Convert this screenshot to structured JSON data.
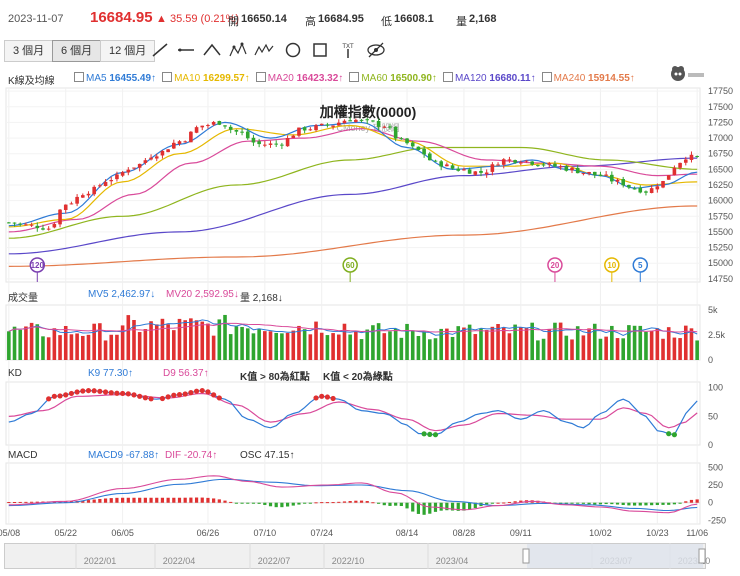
{
  "header": {
    "date": "2023-11-07",
    "price": "16684.95",
    "change": "35.59 (0.21%)",
    "open_label": "開",
    "open": "16650.14",
    "high_label": "高",
    "high": "16684.95",
    "low_label": "低",
    "low": "16608.1",
    "vol_label": "量",
    "vol": "2,168"
  },
  "tabs": [
    {
      "label": "3 個月"
    },
    {
      "label": "6 個月",
      "selected": true
    },
    {
      "label": "12 個月"
    }
  ],
  "tools": [
    "line-tool-icon",
    "horizontal-line-icon",
    "angle-icon",
    "pattern-icon",
    "wave-icon",
    "circle-icon",
    "rectangle-icon",
    "text-tool-icon",
    "hide-icon"
  ],
  "tool_text": {
    "text_tool": "TXT"
  },
  "main_legend": {
    "title": "K線及均線",
    "items": [
      {
        "name": "MA5",
        "value": "16455.49↑",
        "color": "#2f7bd6"
      },
      {
        "name": "MA10",
        "value": "16299.57↑",
        "color": "#e5b800"
      },
      {
        "name": "MA20",
        "value": "16423.32↑",
        "color": "#d94a9a"
      },
      {
        "name": "MA60",
        "value": "16500.90↑",
        "color": "#8fb51e"
      },
      {
        "name": "MA120",
        "value": "16680.11↑",
        "color": "#5a48c9"
      },
      {
        "name": "MA240",
        "value": "15914.55↑",
        "color": "#e37a4a"
      }
    ]
  },
  "chart_title": "加權指數(0000)",
  "watermark": "CMoney 玩股網",
  "vol_legend": {
    "title": "成交量",
    "mv5": "MV5 2,462.97↓",
    "mv20": "MV20 2,592.95↓",
    "vol": "量 2,168↓"
  },
  "kd_legend": {
    "title": "KD",
    "k": "K9 77.30↑",
    "d": "D9 56.37↑",
    "n1": "K值 > 80為紅點",
    "n2": "K值 < 20為綠點"
  },
  "macd_legend": {
    "title": "MACD",
    "macd": "MACD9 -67.88↑",
    "dif": "DIF -20.74↑",
    "osc": "OSC 47.15↑"
  },
  "markers": [
    {
      "label": "120",
      "color": "#7a3fb0",
      "index": 5
    },
    {
      "label": "60",
      "color": "#7fae1e",
      "index": 60
    },
    {
      "label": "20",
      "color": "#d94a9a",
      "index": 96
    },
    {
      "label": "10",
      "color": "#e5b800",
      "index": 106
    },
    {
      "label": "5",
      "color": "#2f7bd6",
      "index": 111
    }
  ],
  "x_ticks": [
    "05/08",
    "05/22",
    "06/05",
    "06/26",
    "07/10",
    "07/24",
    "08/14",
    "08/28",
    "09/11",
    "10/02",
    "10/23",
    "11/06"
  ],
  "nav_ticks": [
    "2022/01",
    "2022/04",
    "2022/07",
    "2022/10",
    "2023/04",
    "2023/07",
    "2023/10"
  ],
  "chart_data": {
    "type": "candlestick",
    "title": "加權指數(0000)",
    "price_axis": {
      "ticks": [
        17750,
        17500,
        17250,
        17000,
        16750,
        16500,
        16250,
        16000,
        15750,
        15500,
        15250,
        15000,
        14750
      ],
      "ylim": [
        14700,
        17800
      ]
    },
    "volume_axis": {
      "ticks": [
        "5k",
        "2.5k",
        "0"
      ],
      "ylim": [
        0,
        5500
      ]
    },
    "kd_axis": {
      "ticks": [
        100,
        50,
        0
      ],
      "ylim": [
        0,
        110
      ]
    },
    "macd_axis": {
      "ticks": [
        500,
        250,
        0,
        -250
      ],
      "ylim": [
        -300,
        560
      ]
    },
    "close_path_anchors": [
      [
        0,
        15650
      ],
      [
        4,
        15600
      ],
      [
        7,
        15560
      ],
      [
        10,
        15950
      ],
      [
        14,
        16150
      ],
      [
        18,
        16350
      ],
      [
        22,
        16550
      ],
      [
        26,
        16750
      ],
      [
        30,
        16950
      ],
      [
        34,
        17200
      ],
      [
        37,
        17250
      ],
      [
        40,
        17100
      ],
      [
        44,
        16900
      ],
      [
        47,
        16900
      ],
      [
        52,
        17150
      ],
      [
        56,
        17200
      ],
      [
        60,
        17300
      ],
      [
        63,
        17250
      ],
      [
        66,
        17200
      ],
      [
        69,
        16950
      ],
      [
        72,
        16800
      ],
      [
        75,
        16600
      ],
      [
        79,
        16500
      ],
      [
        83,
        16450
      ],
      [
        87,
        16650
      ],
      [
        90,
        16650
      ],
      [
        93,
        16600
      ],
      [
        96,
        16550
      ],
      [
        99,
        16500
      ],
      [
        101,
        16450
      ],
      [
        104,
        16400
      ],
      [
        107,
        16300
      ],
      [
        110,
        16200
      ],
      [
        112,
        16150
      ],
      [
        115,
        16300
      ],
      [
        117,
        16550
      ],
      [
        119,
        16700
      ],
      [
        121,
        16685
      ]
    ],
    "ma_anchors": {
      "MA5": [
        [
          0,
          15600
        ],
        [
          10,
          15800
        ],
        [
          20,
          16450
        ],
        [
          30,
          16900
        ],
        [
          38,
          17250
        ],
        [
          46,
          17000
        ],
        [
          54,
          17200
        ],
        [
          62,
          17250
        ],
        [
          70,
          16850
        ],
        [
          78,
          16500
        ],
        [
          86,
          16550
        ],
        [
          92,
          16650
        ],
        [
          98,
          16500
        ],
        [
          104,
          16400
        ],
        [
          110,
          16200
        ],
        [
          115,
          16250
        ],
        [
          121,
          16455
        ]
      ],
      "MA10": [
        [
          0,
          15580
        ],
        [
          10,
          15700
        ],
        [
          20,
          16300
        ],
        [
          30,
          16750
        ],
        [
          40,
          17150
        ],
        [
          50,
          17050
        ],
        [
          60,
          17200
        ],
        [
          70,
          16950
        ],
        [
          80,
          16550
        ],
        [
          88,
          16550
        ],
        [
          96,
          16600
        ],
        [
          104,
          16400
        ],
        [
          112,
          16250
        ],
        [
          121,
          16300
        ]
      ],
      "MA20": [
        [
          0,
          15500
        ],
        [
          12,
          15700
        ],
        [
          22,
          16100
        ],
        [
          32,
          16600
        ],
        [
          42,
          16950
        ],
        [
          52,
          17000
        ],
        [
          62,
          17150
        ],
        [
          72,
          16950
        ],
        [
          84,
          16650
        ],
        [
          94,
          16600
        ],
        [
          104,
          16550
        ],
        [
          114,
          16400
        ],
        [
          121,
          16423
        ]
      ],
      "MA60": [
        [
          0,
          15400
        ],
        [
          20,
          15750
        ],
        [
          40,
          16250
        ],
        [
          60,
          16650
        ],
        [
          75,
          16850
        ],
        [
          90,
          16850
        ],
        [
          105,
          16650
        ],
        [
          121,
          16501
        ]
      ],
      "MA120": [
        [
          0,
          15150
        ],
        [
          30,
          15500
        ],
        [
          60,
          16100
        ],
        [
          80,
          16400
        ],
        [
          100,
          16550
        ],
        [
          121,
          16680
        ]
      ],
      "MA240": [
        [
          0,
          14950
        ],
        [
          40,
          15100
        ],
        [
          80,
          15450
        ],
        [
          121,
          15915
        ]
      ]
    },
    "volume": {
      "avg": 2600,
      "latest": 2168
    },
    "kd": {
      "k_last": 77.3,
      "d_last": 56.37,
      "k_anchors": [
        [
          0,
          40
        ],
        [
          4,
          55
        ],
        [
          8,
          85
        ],
        [
          14,
          95
        ],
        [
          20,
          90
        ],
        [
          26,
          80
        ],
        [
          30,
          88
        ],
        [
          34,
          95
        ],
        [
          38,
          80
        ],
        [
          42,
          45
        ],
        [
          46,
          30
        ],
        [
          50,
          55
        ],
        [
          55,
          85
        ],
        [
          58,
          80
        ],
        [
          62,
          60
        ],
        [
          66,
          55
        ],
        [
          70,
          35
        ],
        [
          72,
          20
        ],
        [
          75,
          18
        ],
        [
          79,
          40
        ],
        [
          83,
          55
        ],
        [
          86,
          60
        ],
        [
          90,
          45
        ],
        [
          94,
          60
        ],
        [
          98,
          40
        ],
        [
          101,
          30
        ],
        [
          104,
          55
        ],
        [
          108,
          80
        ],
        [
          112,
          50
        ],
        [
          114,
          25
        ],
        [
          117,
          18
        ],
        [
          119,
          55
        ],
        [
          121,
          77
        ]
      ],
      "d_anchors": [
        [
          0,
          50
        ],
        [
          6,
          60
        ],
        [
          12,
          85
        ],
        [
          20,
          88
        ],
        [
          28,
          82
        ],
        [
          34,
          90
        ],
        [
          40,
          70
        ],
        [
          46,
          40
        ],
        [
          52,
          55
        ],
        [
          58,
          75
        ],
        [
          64,
          62
        ],
        [
          70,
          45
        ],
        [
          75,
          25
        ],
        [
          80,
          35
        ],
        [
          86,
          55
        ],
        [
          92,
          52
        ],
        [
          98,
          45
        ],
        [
          104,
          45
        ],
        [
          108,
          65
        ],
        [
          112,
          55
        ],
        [
          116,
          30
        ],
        [
          119,
          40
        ],
        [
          121,
          56
        ]
      ]
    },
    "macd": {
      "macd9_last": -67.88,
      "dif_last": -20.74,
      "osc_last": 47.15
    }
  },
  "colors": {
    "up": "#e03030",
    "down": "#2fa52f",
    "grid": "#eeeeee",
    "axis": "#888888"
  }
}
